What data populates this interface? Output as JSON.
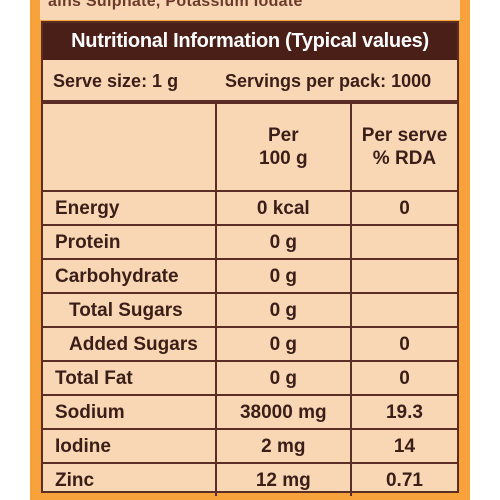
{
  "header_strip_text": "ains Sulphate, Potassium Iodate",
  "title": "Nutritional Information (Typical values)",
  "serve_size": "Serve size: 1 g",
  "servings_per_pack": "Servings per pack: 1000",
  "columns": {
    "per_100g": [
      "Per",
      "100 g"
    ],
    "per_serve_rda": [
      "Per serve",
      "% RDA"
    ]
  },
  "rows": [
    {
      "name": "Energy",
      "per_100g": "0 kcal",
      "rda": "0"
    },
    {
      "name": "Protein",
      "per_100g": "0 g",
      "rda": ""
    },
    {
      "name": "Carbohydrate",
      "per_100g": "0 g",
      "rda": ""
    },
    {
      "name": "Total Sugars",
      "per_100g": "0 g",
      "rda": ""
    },
    {
      "name": "Added Sugars",
      "per_100g": "0 g",
      "rda": "0"
    },
    {
      "name": "Total Fat",
      "per_100g": "0 g",
      "rda": "0"
    },
    {
      "name": "Sodium",
      "per_100g": "38000 mg",
      "rda": "19.3"
    },
    {
      "name": "Iodine",
      "per_100g": "2 mg",
      "rda": "14"
    },
    {
      "name": "Zinc",
      "per_100g": "12 mg",
      "rda": "0.71"
    }
  ],
  "colors": {
    "label_orange": "#f7a23a",
    "panel_peach": "#f9d7b5",
    "title_brown": "#4a1f18",
    "text_brown": "#3a1e17"
  }
}
